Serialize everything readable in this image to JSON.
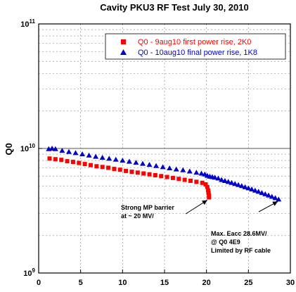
{
  "chart_data": {
    "type": "scatter",
    "title": "Cavity  PKU3  RF  Test  July  30,  2010",
    "xlabel": "",
    "ylabel": "Q0",
    "xlim": [
      0,
      30
    ],
    "ylim": [
      1000000000.0,
      100000000000.0
    ],
    "yscale": "log",
    "x_ticks": [
      0,
      5,
      10,
      15,
      20,
      25,
      30
    ],
    "y_ticks": [
      {
        "value": 1000000000.0,
        "mant": "10",
        "exp": "9"
      },
      {
        "value": 10000000000.0,
        "mant": "10",
        "exp": "10"
      },
      {
        "value": 100000000000.0,
        "mant": "10",
        "exp": "11"
      }
    ],
    "grid": true,
    "legend_position": "top-right",
    "series": [
      {
        "name": "Q0 - 9aug10 first power rise, 2K0",
        "color": "#ff0000",
        "marker": "square",
        "x": [
          1.3,
          2.0,
          2.7,
          3.4,
          4.1,
          4.8,
          5.5,
          6.2,
          6.9,
          7.6,
          8.3,
          9.0,
          9.7,
          10.4,
          11.1,
          11.8,
          12.5,
          13.2,
          13.9,
          14.6,
          15.3,
          16.0,
          16.7,
          17.4,
          18.1,
          18.8,
          19.5,
          19.9,
          20.1,
          20.2,
          20.25,
          20.3,
          20.3
        ],
        "y": [
          8300000000.0,
          8200000000.0,
          8100000000.0,
          7900000000.0,
          7800000000.0,
          7650000000.0,
          7500000000.0,
          7350000000.0,
          7200000000.0,
          7100000000.0,
          7000000000.0,
          6850000000.0,
          6750000000.0,
          6600000000.0,
          6500000000.0,
          6400000000.0,
          6300000000.0,
          6200000000.0,
          6100000000.0,
          6000000000.0,
          5900000000.0,
          5800000000.0,
          5700000000.0,
          5600000000.0,
          5500000000.0,
          5400000000.0,
          5300000000.0,
          5150000000.0,
          4900000000.0,
          4600000000.0,
          4400000000.0,
          4200000000.0,
          4050000000.0
        ]
      },
      {
        "name": "Q0 - 10aug10 final power rise, 1K8",
        "color": "#0000cc",
        "marker": "triangle",
        "x": [
          1.2,
          1.6,
          2.0,
          2.8,
          3.6,
          4.4,
          5.2,
          6.0,
          6.8,
          7.6,
          8.4,
          9.2,
          10.0,
          10.8,
          11.6,
          12.4,
          13.2,
          14.0,
          14.8,
          15.6,
          16.4,
          17.2,
          18.0,
          18.8,
          19.4,
          19.8,
          20.1,
          20.4,
          20.7,
          21.0,
          21.4,
          21.8,
          22.2,
          22.6,
          23.0,
          23.4,
          23.8,
          24.2,
          24.6,
          25.0,
          25.4,
          25.8,
          26.2,
          26.6,
          27.0,
          27.4,
          27.8,
          28.2,
          28.6
        ],
        "y": [
          9900000000.0,
          10000000000.0,
          9900000000.0,
          9600000000.0,
          9400000000.0,
          9200000000.0,
          9000000000.0,
          8800000000.0,
          8600000000.0,
          8450000000.0,
          8300000000.0,
          8150000000.0,
          8000000000.0,
          7850000000.0,
          7700000000.0,
          7550000000.0,
          7400000000.0,
          7250000000.0,
          7100000000.0,
          6950000000.0,
          6800000000.0,
          6700000000.0,
          6550000000.0,
          6400000000.0,
          6300000000.0,
          6200000000.0,
          6050000000.0,
          5950000000.0,
          5900000000.0,
          5850000000.0,
          5750000000.0,
          5600000000.0,
          5500000000.0,
          5400000000.0,
          5300000000.0,
          5200000000.0,
          5100000000.0,
          5000000000.0,
          4900000000.0,
          4800000000.0,
          4700000000.0,
          4600000000.0,
          4500000000.0,
          4400000000.0,
          4300000000.0,
          4200000000.0,
          4100000000.0,
          4000000000.0,
          3900000000.0
        ]
      }
    ],
    "annotations": [
      {
        "lines": [
          "Strong  MP  barrier",
          "at  ~  20  MV/"
        ],
        "arrow_to": [
          20.1,
          4050000000.0
        ]
      },
      {
        "lines": [
          "Max.  Eacc  28.6MV/",
          "@  Q0   4E9",
          "Limited  by  RF  cable"
        ],
        "arrow_to": [
          28.5,
          3950000000.0
        ]
      }
    ]
  }
}
